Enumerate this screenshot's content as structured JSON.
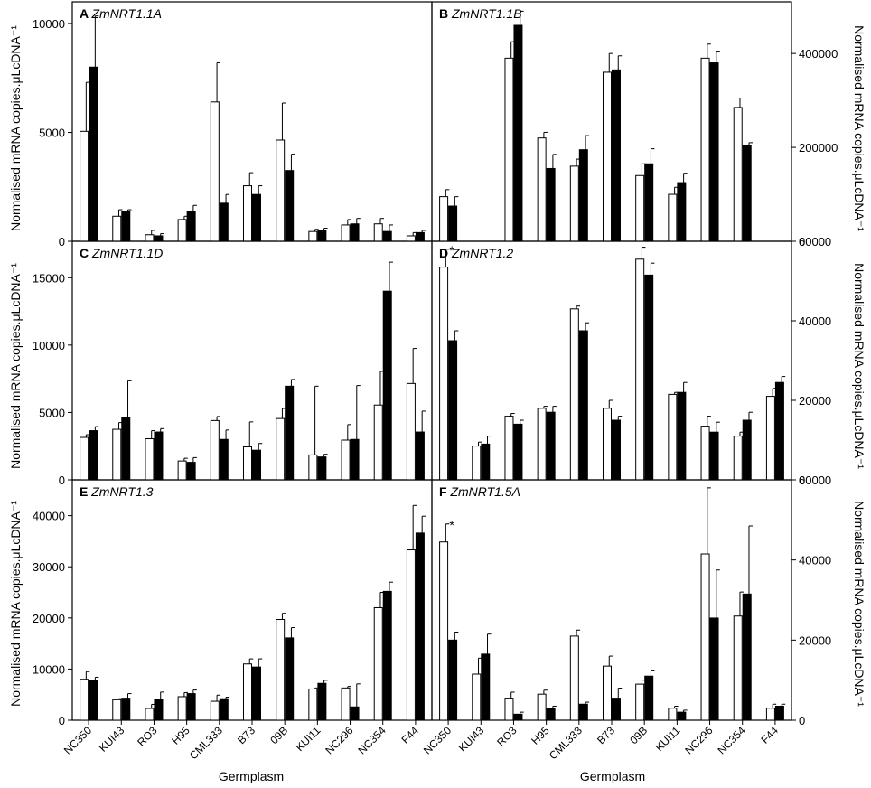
{
  "figure": {
    "x_axis_title": "Germplasm",
    "y_axis_title_left": "Normalised mRNA copies.μLcDNA⁻¹",
    "y_axis_title_right": "Normalised mRNA copies.μLcDNA⁻¹",
    "categories": [
      "NC350",
      "KUI43",
      "RO3",
      "H95",
      "CML333",
      "B73",
      "09B",
      "KUI11",
      "NC296",
      "NC354",
      "F44"
    ],
    "colors": {
      "open_bar_fill": "#ffffff",
      "solid_bar_fill": "#000000",
      "stroke": "#000000"
    }
  },
  "chart_data": [
    {
      "panel": "A",
      "gene": "ZmNRT1.1A",
      "type": "bar",
      "y_axis_side": "left",
      "ylim": [
        0,
        11000
      ],
      "yticks": [
        0,
        5000,
        10000
      ],
      "categories": [
        "NC350",
        "KUI43",
        "RO3",
        "H95",
        "CML333",
        "B73",
        "09B",
        "KUI11",
        "NC296",
        "NC354",
        "F44"
      ],
      "series": [
        {
          "style": "open",
          "values": [
            5050,
            1150,
            300,
            1000,
            6400,
            2550,
            4650,
            450,
            750,
            800,
            250
          ],
          "errors": [
            2250,
            300,
            200,
            150,
            1800,
            600,
            1700,
            100,
            250,
            250,
            150
          ]
        },
        {
          "style": "solid",
          "values": [
            8000,
            1350,
            250,
            1350,
            1750,
            2150,
            3250,
            500,
            800,
            450,
            400
          ],
          "errors": [
            2350,
            100,
            100,
            300,
            400,
            400,
            750,
            100,
            250,
            300,
            100
          ]
        }
      ],
      "annotations": []
    },
    {
      "panel": "B",
      "gene": "ZmNRT1.1B",
      "type": "bar",
      "y_axis_side": "right",
      "ylim": [
        0,
        510000
      ],
      "yticks": [
        0,
        200000,
        400000
      ],
      "categories": [
        "NC350",
        "KUI43",
        "RO3",
        "H95",
        "CML333",
        "B73",
        "09B",
        "KUI11",
        "NC296",
        "NC354",
        "F44"
      ],
      "series": [
        {
          "style": "open",
          "values": [
            95000,
            0,
            390000,
            220000,
            160000,
            360000,
            140000,
            100000,
            390000,
            285000,
            0
          ],
          "errors": [
            15000,
            0,
            35000,
            12000,
            15000,
            40000,
            25000,
            15000,
            30000,
            20000,
            0
          ]
        },
        {
          "style": "solid",
          "values": [
            75000,
            0,
            460000,
            155000,
            195000,
            365000,
            165000,
            125000,
            380000,
            205000,
            0
          ],
          "errors": [
            20000,
            0,
            30000,
            30000,
            30000,
            30000,
            32000,
            20000,
            25000,
            5000,
            0
          ]
        }
      ],
      "annotations": []
    },
    {
      "panel": "C",
      "gene": "ZmNRT1.1D",
      "type": "bar",
      "y_axis_side": "left",
      "ylim": [
        0,
        17700
      ],
      "yticks": [
        0,
        5000,
        10000,
        15000
      ],
      "categories": [
        "NC350",
        "KUI43",
        "RO3",
        "H95",
        "CML333",
        "B73",
        "09B",
        "KUI11",
        "NC296",
        "NC354",
        "F44"
      ],
      "series": [
        {
          "style": "open",
          "values": [
            3150,
            3750,
            3050,
            1400,
            4400,
            2450,
            4550,
            1850,
            2950,
            5550,
            7150
          ],
          "errors": [
            200,
            500,
            600,
            200,
            300,
            1850,
            750,
            5100,
            1150,
            2500,
            2600
          ]
        },
        {
          "style": "solid",
          "values": [
            3650,
            4600,
            3550,
            1300,
            3000,
            2200,
            6950,
            1700,
            3000,
            14000,
            3550
          ],
          "errors": [
            300,
            2750,
            250,
            350,
            700,
            500,
            500,
            200,
            4000,
            2150,
            1550
          ]
        }
      ],
      "annotations": []
    },
    {
      "panel": "D",
      "gene": "ZmNRT1.2",
      "type": "bar",
      "y_axis_side": "right",
      "ylim": [
        0,
        60000
      ],
      "yticks": [
        0,
        20000,
        40000,
        60000
      ],
      "categories": [
        "NC350",
        "KUI43",
        "RO3",
        "H95",
        "CML333",
        "B73",
        "09B",
        "KUI11",
        "NC296",
        "NC354",
        "F44"
      ],
      "series": [
        {
          "style": "open",
          "values": [
            53500,
            8500,
            16000,
            18000,
            43000,
            18000,
            55500,
            21500,
            13500,
            11000,
            21000
          ],
          "errors": [
            4500,
            1000,
            700,
            500,
            700,
            2000,
            3000,
            500,
            2500,
            1000,
            2000
          ]
        },
        {
          "style": "solid",
          "values": [
            35000,
            9000,
            14000,
            17000,
            37500,
            15000,
            51500,
            22000,
            12000,
            15000,
            24500
          ],
          "errors": [
            2500,
            2000,
            1000,
            1500,
            2000,
            1000,
            3000,
            2500,
            2500,
            2000,
            1500
          ]
        }
      ],
      "annotations": [
        {
          "panel_index": 0,
          "category": "NC350",
          "text": "*"
        }
      ]
    },
    {
      "panel": "E",
      "gene": "ZmNRT1.3",
      "type": "bar",
      "y_axis_side": "left",
      "ylim": [
        0,
        47000
      ],
      "yticks": [
        0,
        10000,
        20000,
        30000,
        40000
      ],
      "categories": [
        "NC350",
        "KUI43",
        "RO3",
        "H95",
        "CML333",
        "B73",
        "09B",
        "KUI11",
        "NC296",
        "NC354",
        "F44"
      ],
      "series": [
        {
          "style": "open",
          "values": [
            8000,
            4000,
            2300,
            4600,
            3700,
            11000,
            19700,
            6100,
            6300,
            22000,
            33300
          ],
          "errors": [
            1500,
            200,
            800,
            800,
            1200,
            1000,
            1200,
            200,
            300,
            3000,
            8700
          ]
        },
        {
          "style": "solid",
          "values": [
            7800,
            4300,
            4000,
            5200,
            4200,
            10400,
            16100,
            7200,
            2600,
            25200,
            36600
          ],
          "errors": [
            600,
            900,
            1500,
            700,
            300,
            1600,
            2000,
            600,
            4500,
            1800,
            3300
          ]
        }
      ],
      "annotations": []
    },
    {
      "panel": "F",
      "gene": "ZmNRT1.5A",
      "type": "bar",
      "y_axis_side": "right",
      "ylim": [
        0,
        60000
      ],
      "yticks": [
        0,
        20000,
        40000,
        60000
      ],
      "categories": [
        "NC350",
        "KUI43",
        "RO3",
        "H95",
        "CML333",
        "B73",
        "09B",
        "KUI11",
        "NC296",
        "NC354",
        "F44"
      ],
      "series": [
        {
          "style": "open",
          "values": [
            44500,
            11500,
            5500,
            6500,
            21000,
            13500,
            9000,
            3000,
            41500,
            26000,
            3000
          ],
          "errors": [
            4500,
            4000,
            1500,
            1000,
            1500,
            2500,
            1000,
            500,
            16500,
            6000,
            1000
          ]
        },
        {
          "style": "solid",
          "values": [
            20000,
            16500,
            1500,
            3000,
            4000,
            5500,
            11000,
            2000,
            25500,
            31500,
            3500
          ],
          "errors": [
            2000,
            5000,
            500,
            500,
            500,
            2500,
            1500,
            500,
            12000,
            17000,
            500
          ]
        }
      ],
      "annotations": [
        {
          "panel_index": 0,
          "category": "NC350",
          "text": "*"
        }
      ]
    }
  ]
}
